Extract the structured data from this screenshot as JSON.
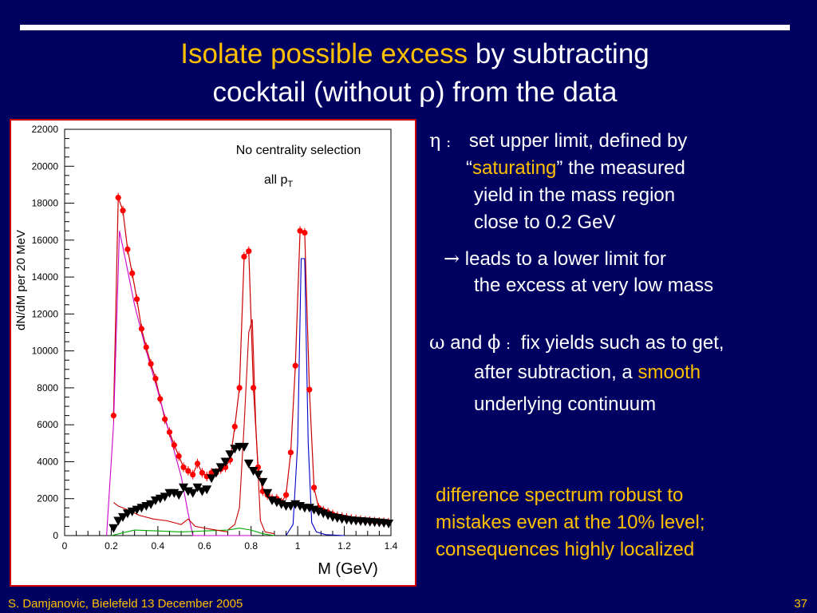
{
  "title": {
    "line1_highlight": "Isolate possible excess",
    "line1_rest": " by subtracting",
    "line2_pre": "cocktail (without ",
    "line2_greek": "ρ",
    "line2_post": ") from the data"
  },
  "notes": {
    "eta_symbol": "η",
    "colon": ":",
    "eta_line1": "set upper limit, defined by",
    "quote_open": "“",
    "saturating": "saturating",
    "eta_line2_rest": "” the  measured",
    "eta_line3": "yield in the mass region",
    "eta_line4": "close to 0.2 GeV",
    "arrow": "→",
    "lead_line1": "leads to a lower limit for",
    "lead_line2": "the excess at very low mass",
    "omega_symbol": "ω",
    "and": "and",
    "phi_symbol": "ϕ",
    "omega_line1": "fix yields such as to get,",
    "omega_line2_pre": "after subtraction, a ",
    "smooth": "smooth",
    "omega_line3": "underlying continuum",
    "robust_line1": "difference spectrum robust to",
    "robust_line2": "mistakes even at the 10% level;",
    "robust_line3": "consequences highly localized"
  },
  "footer": {
    "left": "S. Damjanovic, Bielefeld 13 December 2005",
    "right": "37"
  },
  "chart_data": {
    "type": "scatter",
    "xlabel": "M (GeV)",
    "ylabel": "dN/dM per 20 MeV",
    "xlim": [
      0,
      1.4
    ],
    "ylim": [
      0,
      22000
    ],
    "xticks": [
      "0",
      "0.2",
      "0.4",
      "0.6",
      "0.8",
      "1",
      "1.2",
      "1.4"
    ],
    "yticks": [
      "0",
      "2000",
      "4000",
      "6000",
      "8000",
      "10000",
      "12000",
      "14000",
      "16000",
      "18000",
      "20000",
      "22000"
    ],
    "annotations": [
      "No centrality selection",
      "all p",
      "T"
    ],
    "colors": {
      "data": "#ff0000",
      "difference": "#000000",
      "eta": "#cc00cc",
      "omega": "#cc0000",
      "phi": "#0000cc",
      "eta_prime": "#00aa00",
      "total": "#cc0000"
    },
    "series": [
      {
        "style": "red-dots",
        "x": [
          0.21,
          0.23,
          0.25,
          0.27,
          0.29,
          0.31,
          0.33,
          0.35,
          0.37,
          0.39,
          0.41,
          0.43,
          0.45,
          0.47,
          0.49,
          0.51,
          0.53,
          0.55,
          0.57,
          0.59,
          0.61,
          0.63,
          0.65,
          0.67,
          0.69,
          0.71,
          0.73,
          0.75,
          0.77,
          0.79,
          0.81,
          0.83,
          0.85,
          0.87,
          0.89,
          0.91,
          0.93,
          0.95,
          0.97,
          0.99,
          1.01,
          1.03,
          1.05,
          1.07,
          1.09,
          1.11,
          1.13,
          1.15,
          1.17,
          1.19,
          1.21,
          1.23,
          1.25,
          1.27,
          1.29,
          1.31,
          1.33,
          1.35,
          1.37,
          1.39
        ],
        "y": [
          6500,
          18300,
          17600,
          15500,
          14200,
          12800,
          11200,
          10200,
          9300,
          8500,
          7400,
          6300,
          5600,
          4900,
          4300,
          3700,
          3500,
          3300,
          3900,
          3400,
          3200,
          3400,
          3400,
          3600,
          3700,
          4100,
          5900,
          8000,
          15100,
          15400,
          8000,
          3700,
          2400,
          2200,
          2000,
          2000,
          1800,
          2200,
          4500,
          9200,
          16500,
          16400,
          7900,
          2600,
          1500,
          1350,
          1250,
          1150,
          1050,
          1000,
          950,
          900,
          870,
          840,
          800,
          780,
          760,
          740,
          720,
          700
        ]
      },
      {
        "style": "black-triangles",
        "x": [
          0.21,
          0.23,
          0.25,
          0.27,
          0.29,
          0.31,
          0.33,
          0.35,
          0.37,
          0.39,
          0.41,
          0.43,
          0.45,
          0.47,
          0.49,
          0.51,
          0.53,
          0.55,
          0.57,
          0.59,
          0.61,
          0.63,
          0.65,
          0.67,
          0.69,
          0.71,
          0.73,
          0.75,
          0.77,
          0.79,
          0.81,
          0.83,
          0.85,
          0.87,
          0.89,
          0.91,
          0.93,
          0.95,
          0.97,
          0.99,
          1.01,
          1.03,
          1.05,
          1.07,
          1.09,
          1.11,
          1.13,
          1.15,
          1.17,
          1.19,
          1.21,
          1.23,
          1.25,
          1.27,
          1.29,
          1.31,
          1.33,
          1.35,
          1.37,
          1.39
        ],
        "y": [
          400,
          800,
          1000,
          1200,
          1300,
          1400,
          1500,
          1600,
          1700,
          1900,
          2000,
          2100,
          2300,
          2300,
          2200,
          2600,
          2400,
          2300,
          2600,
          2400,
          2500,
          3100,
          3400,
          3700,
          4000,
          4400,
          4700,
          4800,
          4800,
          3900,
          3500,
          3300,
          2900,
          2300,
          1900,
          1800,
          1700,
          1600,
          1600,
          1700,
          1600,
          1500,
          1500,
          1400,
          1300,
          1200,
          1100,
          1000,
          950,
          900,
          850,
          820,
          800,
          780,
          760,
          740,
          720,
          700,
          680,
          650
        ]
      },
      {
        "name": "eta",
        "x": [
          0.18,
          0.21,
          0.235,
          0.26,
          0.3,
          0.35,
          0.4,
          0.45,
          0.5,
          0.53,
          0.55,
          0.6,
          0.8
        ],
        "y": [
          0,
          6000,
          16500,
          15000,
          12500,
          10000,
          7800,
          5500,
          3200,
          1200,
          0,
          0,
          0
        ]
      },
      {
        "name": "omega",
        "x": [
          0.7,
          0.73,
          0.75,
          0.77,
          0.79,
          0.805,
          0.82,
          0.84,
          0.86,
          0.9
        ],
        "y": [
          300,
          600,
          1500,
          6000,
          11000,
          11700,
          6000,
          800,
          200,
          100
        ]
      },
      {
        "name": "phi",
        "x": [
          0.95,
          0.98,
          1.0,
          1.015,
          1.03,
          1.045,
          1.06,
          1.08,
          1.12,
          1.2
        ],
        "y": [
          0,
          600,
          5000,
          15000,
          15000,
          5000,
          700,
          200,
          50,
          0
        ]
      },
      {
        "name": "eta_prime",
        "x": [
          0.2,
          0.3,
          0.4,
          0.5,
          0.6,
          0.7,
          0.75,
          0.8,
          0.85,
          0.9
        ],
        "y": [
          0,
          300,
          250,
          200,
          250,
          300,
          400,
          300,
          100,
          0
        ]
      },
      {
        "name": "dalitz",
        "x": [
          0.21,
          0.23,
          0.27,
          0.32,
          0.38,
          0.44,
          0.5,
          0.53,
          0.56,
          0.6,
          0.65,
          0.7
        ],
        "y": [
          1800,
          1600,
          1400,
          1100,
          900,
          800,
          600,
          900,
          500,
          400,
          300,
          200
        ]
      }
    ]
  }
}
